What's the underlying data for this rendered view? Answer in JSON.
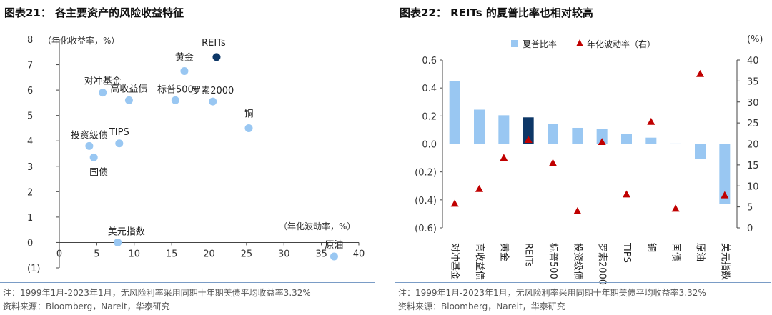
{
  "left": {
    "title": "图表21：  各主要资产的风险收益特征",
    "note": "注：1999年1月-2023年1月，无风险利率采用同期十年期美债平均收益率3.32%",
    "source": "资料来源：Bloomberg，Nareit，华泰研究"
  },
  "right": {
    "title": "图表22：  REITs 的夏普比率也相对较高",
    "note": "注：1999年1月-2023年1月，无风险利率采用同期十年期美债平均收益率3.32%",
    "source": "资料来源：Bloomberg，Nareit，华泰研究"
  },
  "colors": {
    "light_blue": "#99c7f2",
    "dark_navy": "#0d3767",
    "red": "#c00000",
    "rule": "#7a9cc6"
  },
  "chart_data": [
    {
      "type": "scatter",
      "title": "各主要资产的风险收益特征",
      "xlabel": "（年化波动率，%）",
      "ylabel": "（年化收益率，%）",
      "xlim": [
        0,
        40
      ],
      "ylim": [
        -1,
        8
      ],
      "xticks": [
        "0",
        "5",
        "10",
        "15",
        "20",
        "25",
        "30",
        "35",
        "40"
      ],
      "yticks": [
        "(1)",
        "0",
        "1",
        "2",
        "3",
        "4",
        "5",
        "6",
        "7",
        "8"
      ],
      "points": [
        {
          "label": "REITs",
          "x": 21.0,
          "y": 7.3,
          "highlight": true
        },
        {
          "label": "黄金",
          "x": 16.7,
          "y": 6.75,
          "highlight": false
        },
        {
          "label": "对冲基金",
          "x": 5.8,
          "y": 5.9,
          "highlight": false
        },
        {
          "label": "高收益债",
          "x": 9.3,
          "y": 5.6,
          "highlight": false
        },
        {
          "label": "标普500",
          "x": 15.5,
          "y": 5.6,
          "highlight": false
        },
        {
          "label": "罗素2000",
          "x": 20.5,
          "y": 5.55,
          "highlight": false
        },
        {
          "label": "铜",
          "x": 25.3,
          "y": 4.5,
          "highlight": false
        },
        {
          "label": "TIPS",
          "x": 8.0,
          "y": 3.9,
          "highlight": false
        },
        {
          "label": "投资级债",
          "x": 4.0,
          "y": 3.8,
          "highlight": false
        },
        {
          "label": "国债",
          "x": 4.6,
          "y": 3.35,
          "highlight": false
        },
        {
          "label": "美元指数",
          "x": 7.8,
          "y": 0.0,
          "highlight": false
        },
        {
          "label": "原油",
          "x": 36.7,
          "y": -0.55,
          "highlight": false
        }
      ]
    },
    {
      "type": "bar",
      "title": "REITs 的夏普比率也相对较高",
      "legend": [
        "夏普比率",
        "年化波动率（右）"
      ],
      "right_axis_unit": "(%)",
      "categories": [
        "对冲基金",
        "高收益债",
        "黄金",
        "REITs",
        "标普500",
        "投资级债",
        "罗素2000",
        "TIPS",
        "铜",
        "国债",
        "原油",
        "美元指数"
      ],
      "sharpe": [
        0.45,
        0.245,
        0.205,
        0.19,
        0.145,
        0.115,
        0.105,
        0.07,
        0.045,
        0.003,
        -0.105,
        -0.43
      ],
      "volatility": [
        5.8,
        9.3,
        16.7,
        21.0,
        15.5,
        4.0,
        20.5,
        8.0,
        25.3,
        4.6,
        36.7,
        7.8
      ],
      "highlight_category": "REITs",
      "ylim_left": [
        -0.6,
        0.6
      ],
      "ylim_right": [
        0,
        40
      ],
      "yticks_left": [
        "0.6",
        "0.4",
        "0.2",
        "0.0",
        "(0.2)",
        "(0.4)",
        "(0.6)"
      ],
      "yticks_right": [
        "40",
        "35",
        "30",
        "25",
        "20",
        "15",
        "10",
        "5",
        "0"
      ]
    }
  ]
}
